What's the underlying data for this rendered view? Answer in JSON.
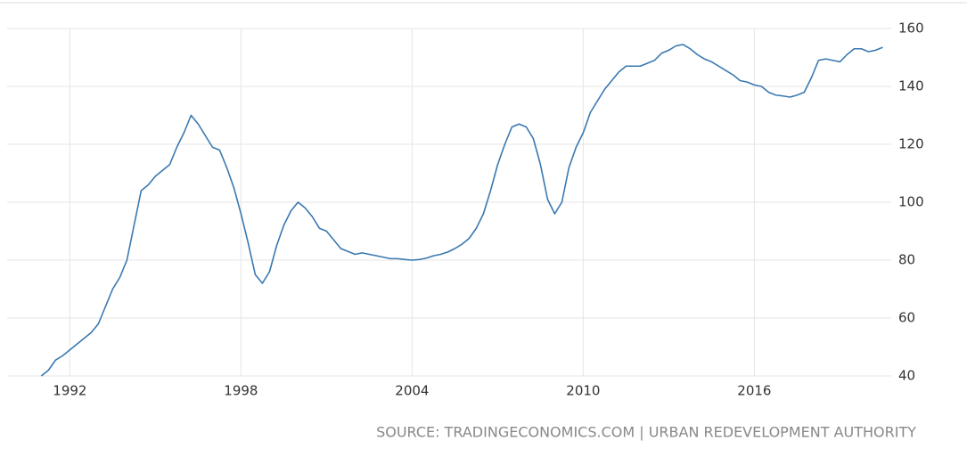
{
  "chart_data": {
    "type": "line",
    "source": "SOURCE: TRADINGECONOMICS.COM | URBAN REDEVELOPMENT AUTHORITY",
    "x": [
      1991,
      1991.25,
      1991.5,
      1991.75,
      1992,
      1992.25,
      1992.5,
      1992.75,
      1993,
      1993.25,
      1993.5,
      1993.75,
      1994,
      1994.25,
      1994.5,
      1994.75,
      1995,
      1995.25,
      1995.5,
      1995.75,
      1996,
      1996.25,
      1996.5,
      1996.75,
      1997,
      1997.25,
      1997.5,
      1997.75,
      1998,
      1998.25,
      1998.5,
      1998.75,
      1999,
      1999.25,
      1999.5,
      1999.75,
      2000,
      2000.25,
      2000.5,
      2000.75,
      2001,
      2001.25,
      2001.5,
      2001.75,
      2002,
      2002.25,
      2002.5,
      2002.75,
      2003,
      2003.25,
      2003.5,
      2003.75,
      2004,
      2004.25,
      2004.5,
      2004.75,
      2005,
      2005.25,
      2005.5,
      2005.75,
      2006,
      2006.25,
      2006.5,
      2006.75,
      2007,
      2007.25,
      2007.5,
      2007.75,
      2008,
      2008.25,
      2008.5,
      2008.75,
      2009,
      2009.25,
      2009.5,
      2009.75,
      2010,
      2010.25,
      2010.5,
      2010.75,
      2011,
      2011.25,
      2011.5,
      2011.75,
      2012,
      2012.25,
      2012.5,
      2012.75,
      2013,
      2013.25,
      2013.5,
      2013.75,
      2014,
      2014.25,
      2014.5,
      2014.75,
      2015,
      2015.25,
      2015.5,
      2015.75,
      2016,
      2016.25,
      2016.5,
      2016.75,
      2017,
      2017.25,
      2017.5,
      2017.75,
      2018,
      2018.25,
      2018.5,
      2018.75,
      2019,
      2019.25,
      2019.5,
      2019.75,
      2020,
      2020.25,
      2020.5
    ],
    "series": [
      {
        "color": "#3a78b0",
        "values": [
          40,
          42,
          45.5,
          47,
          49,
          51,
          53,
          55,
          58,
          64,
          70,
          74,
          80,
          92,
          104,
          106,
          109,
          111,
          113,
          119,
          124,
          130,
          127,
          123,
          119,
          118,
          112,
          105,
          96,
          86,
          75,
          72,
          76,
          85,
          92,
          97,
          100,
          98,
          95,
          91,
          90,
          87,
          84,
          83,
          82,
          82.5,
          82,
          81.5,
          81,
          80.5,
          80.5,
          80.2,
          80,
          80.2,
          80.7,
          81.5,
          82,
          82.8,
          84,
          85.5,
          87.5,
          91,
          96,
          104,
          113,
          120,
          126,
          127,
          126,
          122,
          113,
          101,
          96,
          100,
          112,
          119,
          124,
          131,
          135,
          139,
          142,
          145,
          147,
          147,
          147,
          148,
          149,
          151.5,
          152.5,
          154,
          154.5,
          153,
          151,
          149.5,
          148.5,
          147,
          145.5,
          144,
          142,
          141.5,
          140.5,
          140,
          138,
          137,
          136.7,
          136.3,
          137,
          138,
          143,
          149,
          149.5,
          149,
          148.5,
          151,
          153,
          153,
          152,
          152.5,
          153.5
        ]
      }
    ],
    "xlim": [
      1989.8,
      2020.8
    ],
    "xticks": [
      1992,
      1998,
      2004,
      2010,
      2016
    ],
    "ylim": [
      40,
      160
    ],
    "yticks": [
      40,
      60,
      80,
      100,
      120,
      140,
      160
    ],
    "grid": true
  }
}
